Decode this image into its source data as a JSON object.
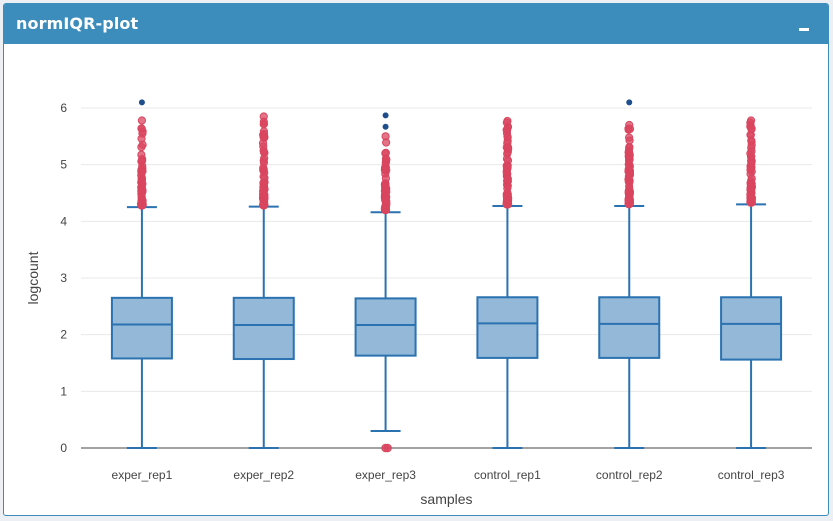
{
  "panel": {
    "title": "normIQR-plot"
  },
  "colors": {
    "header": "#3c8dbc",
    "box_fill": "#93b8d8",
    "box_stroke": "#2a72b0",
    "outlier_red": "#d9455f",
    "outlier_blue": "#1f4e8c",
    "grid": "#e8e8e8"
  },
  "chart_data": {
    "type": "box",
    "xlabel": "samples",
    "ylabel": "logcount",
    "ylim": [
      -0.1,
      6.3
    ],
    "yticks": [
      0,
      1,
      2,
      3,
      4,
      5,
      6
    ],
    "grid": true,
    "categories": [
      "exper_rep1",
      "exper_rep2",
      "exper_rep3",
      "control_rep1",
      "control_rep2",
      "control_rep3"
    ],
    "boxes": [
      {
        "name": "exper_rep1",
        "q1": 1.58,
        "median": 2.18,
        "q3": 2.65,
        "whisker_low": 0,
        "whisker_high": 4.25,
        "outlier_min": 4.28,
        "outlier_max": 5.78,
        "high_outliers": [
          6.1
        ],
        "low_outliers": []
      },
      {
        "name": "exper_rep2",
        "q1": 1.57,
        "median": 2.17,
        "q3": 2.65,
        "whisker_low": 0,
        "whisker_high": 4.26,
        "outlier_min": 4.28,
        "outlier_max": 5.85,
        "high_outliers": [],
        "low_outliers": []
      },
      {
        "name": "exper_rep3",
        "q1": 1.63,
        "median": 2.17,
        "q3": 2.64,
        "whisker_low": 0.3,
        "whisker_high": 4.16,
        "outlier_min": 4.2,
        "outlier_max": 5.5,
        "high_outliers": [
          5.67,
          5.87
        ],
        "low_outliers": [
          0
        ]
      },
      {
        "name": "control_rep1",
        "q1": 1.59,
        "median": 2.2,
        "q3": 2.66,
        "whisker_low": 0,
        "whisker_high": 4.27,
        "outlier_min": 4.3,
        "outlier_max": 5.77,
        "high_outliers": [],
        "low_outliers": []
      },
      {
        "name": "control_rep2",
        "q1": 1.59,
        "median": 2.19,
        "q3": 2.66,
        "whisker_low": 0,
        "whisker_high": 4.27,
        "outlier_min": 4.3,
        "outlier_max": 5.7,
        "high_outliers": [
          6.1
        ],
        "low_outliers": []
      },
      {
        "name": "control_rep3",
        "q1": 1.56,
        "median": 2.19,
        "q3": 2.66,
        "whisker_low": 0,
        "whisker_high": 4.3,
        "outlier_min": 4.33,
        "outlier_max": 5.78,
        "high_outliers": [],
        "low_outliers": []
      }
    ]
  }
}
